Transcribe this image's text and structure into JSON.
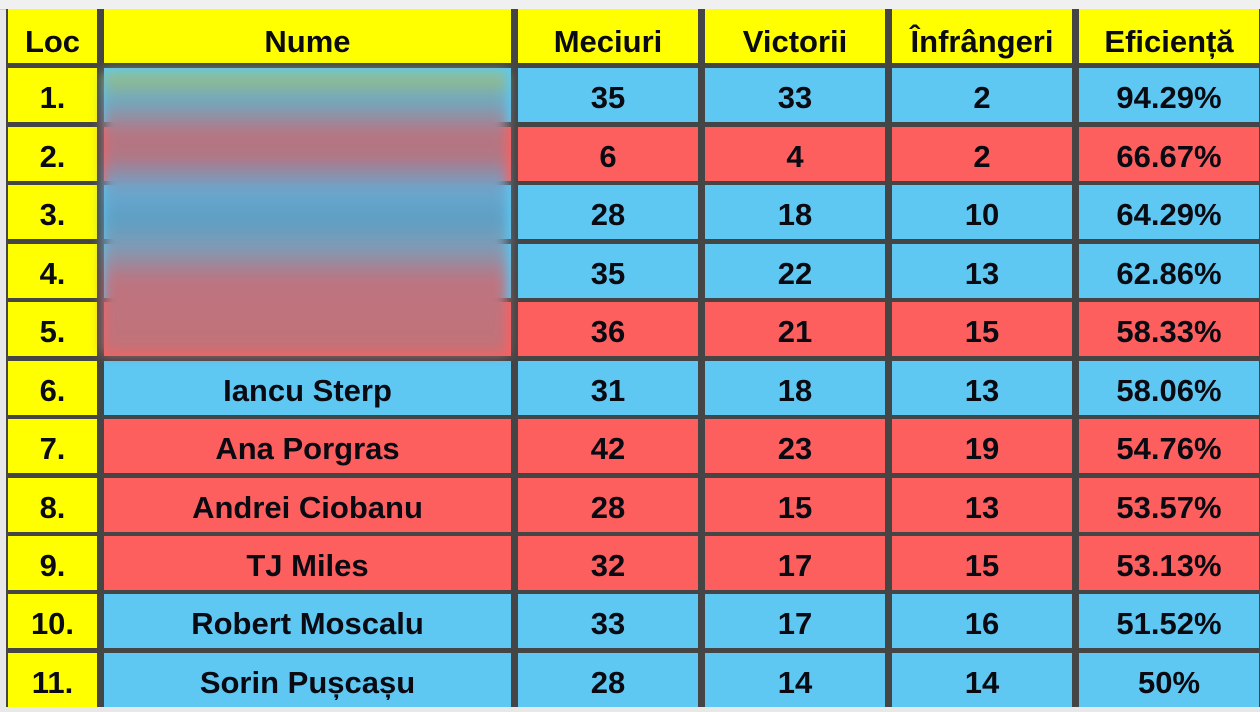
{
  "headers": [
    "Loc",
    "Nume",
    "Meciuri",
    "Victorii",
    "Înfrângeri",
    "Eficiență"
  ],
  "colors": {
    "header": "#ffff00",
    "blue_row": "#5ec8f2",
    "red_row": "#fd5f5f",
    "border": "#454545"
  },
  "rows": [
    {
      "loc": "1.",
      "name": "",
      "meciuri": "35",
      "victorii": "33",
      "infrangeri": "2",
      "eficienta": "94.29%",
      "color": "blue"
    },
    {
      "loc": "2.",
      "name": "",
      "meciuri": "6",
      "victorii": "4",
      "infrangeri": "2",
      "eficienta": "66.67%",
      "color": "red"
    },
    {
      "loc": "3.",
      "name": "",
      "meciuri": "28",
      "victorii": "18",
      "infrangeri": "10",
      "eficienta": "64.29%",
      "color": "blue"
    },
    {
      "loc": "4.",
      "name": "",
      "meciuri": "35",
      "victorii": "22",
      "infrangeri": "13",
      "eficienta": "62.86%",
      "color": "blue"
    },
    {
      "loc": "5.",
      "name": "",
      "meciuri": "36",
      "victorii": "21",
      "infrangeri": "15",
      "eficienta": "58.33%",
      "color": "red"
    },
    {
      "loc": "6.",
      "name": "Iancu Sterp",
      "meciuri": "31",
      "victorii": "18",
      "infrangeri": "13",
      "eficienta": "58.06%",
      "color": "blue"
    },
    {
      "loc": "7.",
      "name": "Ana Porgras",
      "meciuri": "42",
      "victorii": "23",
      "infrangeri": "19",
      "eficienta": "54.76%",
      "color": "red"
    },
    {
      "loc": "8.",
      "name": "Andrei Ciobanu",
      "meciuri": "28",
      "victorii": "15",
      "infrangeri": "13",
      "eficienta": "53.57%",
      "color": "red"
    },
    {
      "loc": "9.",
      "name": "TJ Miles",
      "meciuri": "32",
      "victorii": "17",
      "infrangeri": "15",
      "eficienta": "53.13%",
      "color": "red"
    },
    {
      "loc": "10.",
      "name": "Robert Moscalu",
      "meciuri": "33",
      "victorii": "17",
      "infrangeri": "16",
      "eficienta": "51.52%",
      "color": "blue"
    },
    {
      "loc": "11.",
      "name": "Sorin Pușcașu",
      "meciuri": "28",
      "victorii": "14",
      "infrangeri": "14",
      "eficienta": "50%",
      "color": "blue"
    }
  ]
}
